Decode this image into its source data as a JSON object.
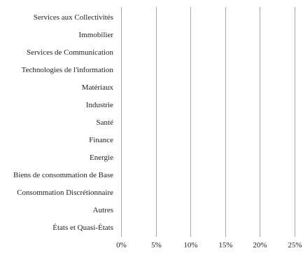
{
  "chart_data": {
    "type": "bar",
    "orientation": "horizontal",
    "categories": [
      "Services aux Collectivités",
      "Immobilier",
      "Services de Communication",
      "Technologies de l'information",
      "Matériaux",
      "Industrie",
      "Santé",
      "Finance",
      "Energie",
      "Biens de consommation de Base",
      "Consommation Discrétionnaire",
      "Autres",
      "États et Quasi-États"
    ],
    "values": [
      0,
      0,
      0,
      0,
      0,
      0,
      0,
      0,
      0,
      0,
      0,
      0,
      0
    ],
    "x_ticks": [
      0,
      5,
      10,
      15,
      20,
      25
    ],
    "x_tick_labels": [
      "0%",
      "5%",
      "10%",
      "15%",
      "20%",
      "25%"
    ],
    "xlim": [
      0,
      25
    ],
    "grid": true,
    "colors": {
      "grid": "#a6a6a6",
      "axis": "#a6a6a6",
      "text": "#222222",
      "bar": "#1f3a6e"
    }
  }
}
